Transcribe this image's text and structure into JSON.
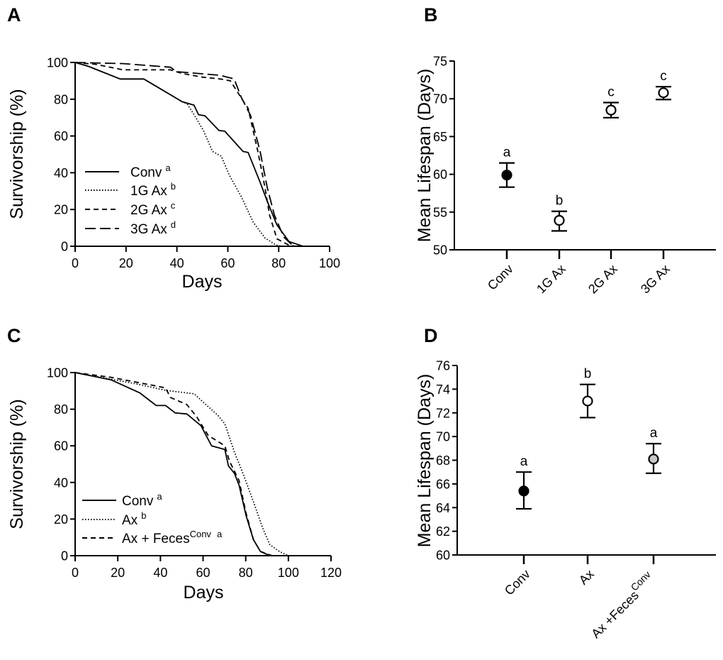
{
  "chart_data": [
    {
      "panel": "A",
      "type": "line",
      "xlabel": "Days",
      "ylabel": "Survivorship (%)",
      "xlim": [
        0,
        100
      ],
      "ylim": [
        0,
        100
      ],
      "xticks": [
        0,
        20,
        40,
        60,
        80,
        100
      ],
      "yticks": [
        0,
        20,
        40,
        60,
        80,
        100
      ],
      "grid": false,
      "legend_position": "bottom-left",
      "series": [
        {
          "name": "Conv",
          "sup": "a",
          "style": "solid",
          "x": [
            0,
            5,
            17.7,
            27,
            42,
            46.7,
            48.5,
            51,
            56.5,
            58.8,
            66,
            68,
            72.7,
            75.5,
            79.3,
            84,
            89.5
          ],
          "y": [
            100,
            98,
            91,
            91,
            78.7,
            76.8,
            71.6,
            71,
            63,
            62.6,
            51.6,
            51,
            34.8,
            24.5,
            11.6,
            2.6,
            0
          ]
        },
        {
          "name": "1G Ax",
          "sup": "b",
          "style": "dotted",
          "x": [
            0,
            5,
            17.7,
            27,
            42,
            44,
            47,
            50.4,
            54,
            57.4,
            60.6,
            65.3,
            70,
            74.6,
            79,
            81
          ],
          "y": [
            100,
            98,
            91,
            91,
            78.7,
            77.5,
            71,
            63,
            51.6,
            49,
            38.7,
            27,
            13,
            4.5,
            0.6,
            0
          ]
        },
        {
          "name": "2G Ax",
          "sup": "c",
          "style": "dashed",
          "x": [
            0,
            8,
            18.8,
            37.4,
            42,
            50,
            57,
            61,
            66.2,
            68,
            71.8,
            74.6,
            76.4,
            79.3,
            84,
            86.6
          ],
          "y": [
            100,
            99,
            96,
            96,
            94,
            92,
            91,
            90,
            78.7,
            75,
            51.6,
            32,
            17,
            4,
            0.6,
            0
          ]
        },
        {
          "name": "3G Ax",
          "sup": "d",
          "style": "longdash",
          "x": [
            0,
            18.8,
            37.4,
            40,
            57,
            62.5,
            65.3,
            69,
            72.7,
            75.5,
            78.3,
            82,
            85.8
          ],
          "y": [
            100,
            99.4,
            97.4,
            95,
            93,
            91,
            81,
            71,
            51.6,
            32,
            17,
            5,
            0
          ]
        }
      ]
    },
    {
      "panel": "B",
      "type": "scatter",
      "ylabel": "Mean Lifespan (Days)",
      "ylim": [
        50,
        75
      ],
      "yticks": [
        50,
        55,
        60,
        65,
        70,
        75
      ],
      "categories": [
        "Conv",
        "1G Ax",
        "2G Ax",
        "3G Ax"
      ],
      "values": [
        59.9,
        53.9,
        68.5,
        70.8
      ],
      "error_low": [
        58.3,
        52.5,
        67.5,
        69.9
      ],
      "error_high": [
        61.5,
        55.1,
        69.5,
        71.6
      ],
      "significance": [
        "a",
        "b",
        "c",
        "c"
      ],
      "marker_fill": [
        "#000000",
        "#ffffff",
        "#ffffff",
        "#ffffff"
      ]
    },
    {
      "panel": "C",
      "type": "line",
      "xlabel": "Days",
      "ylabel": "Survivorship (%)",
      "xlim": [
        0,
        120
      ],
      "ylim": [
        0,
        100
      ],
      "xticks": [
        0,
        20,
        40,
        60,
        80,
        100,
        120
      ],
      "yticks": [
        0,
        20,
        40,
        60,
        80,
        100
      ],
      "grid": false,
      "legend_position": "bottom-left",
      "series": [
        {
          "name": "Conv",
          "sup": "a",
          "style": "solid",
          "x": [
            0,
            16.9,
            30.2,
            38,
            42.4,
            46.9,
            52.4,
            59,
            64,
            70.2,
            71.9,
            74.7,
            76.9,
            80.2,
            83.6,
            86.9,
            91.3
          ],
          "y": [
            100,
            96,
            89,
            82,
            82,
            78,
            77.4,
            71,
            60,
            58,
            49,
            45,
            38.5,
            21.7,
            8.8,
            2.3,
            0
          ]
        },
        {
          "name": "Ax",
          "sup": "b",
          "style": "dotted",
          "x": [
            0,
            28,
            42.4,
            55.8,
            61.3,
            66.9,
            70.2,
            74.7,
            79.1,
            83.6,
            88,
            91.3,
            95.8,
            100
          ],
          "y": [
            100,
            94,
            90.3,
            88.4,
            82.5,
            76.7,
            72,
            56.6,
            43.7,
            29.5,
            15,
            6,
            2.3,
            0
          ]
        },
        {
          "name": "Ax + Feces",
          "supname": "Conv",
          "sup": "a",
          "style": "dashed",
          "x": [
            0,
            16.9,
            37,
            42.4,
            44.7,
            52.4,
            56.9,
            62.4,
            70.2,
            72.4,
            76.9,
            80.2,
            83.6,
            86.9,
            92.4
          ],
          "y": [
            100,
            97.4,
            92.9,
            91.6,
            86.4,
            82.5,
            76,
            65.7,
            60,
            51.6,
            41,
            23,
            8.8,
            2.3,
            0
          ]
        }
      ]
    },
    {
      "panel": "D",
      "type": "scatter",
      "ylabel": "Mean Lifespan (Days)",
      "ylim": [
        60,
        76
      ],
      "yticks": [
        60,
        62,
        64,
        66,
        68,
        70,
        72,
        74,
        76
      ],
      "categories": [
        "Conv",
        "Ax",
        "Ax +Feces"
      ],
      "category_sup": [
        "",
        "",
        "Conv"
      ],
      "values": [
        65.4,
        73.0,
        68.1
      ],
      "error_low": [
        63.9,
        71.6,
        66.9
      ],
      "error_high": [
        67.0,
        74.4,
        69.4
      ],
      "significance": [
        "a",
        "b",
        "a"
      ],
      "marker_fill": [
        "#000000",
        "#ffffff",
        "#c8c8c8"
      ]
    }
  ]
}
